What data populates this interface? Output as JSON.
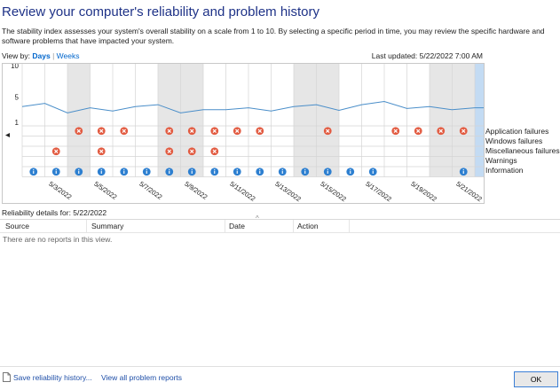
{
  "title": "Review your computer's reliability and problem history",
  "description": "The stability index assesses your system's overall stability on a scale from 1 to 10. By selecting a specific period in time, you may review the specific hardware and software problems that have impacted your system.",
  "view_by": {
    "label": "View by:",
    "days": "Days",
    "separator": "|",
    "weeks": "Weeks"
  },
  "last_updated": "Last updated: 5/22/2022 7:00 AM",
  "chart_data": {
    "type": "line",
    "y_ticks": [
      "10",
      "5",
      "1"
    ],
    "ylim": [
      1,
      10
    ],
    "x": [
      "5/2/2022",
      "5/3/2022",
      "5/4/2022",
      "5/5/2022",
      "5/6/2022",
      "5/7/2022",
      "5/8/2022",
      "5/9/2022",
      "5/10/2022",
      "5/11/2022",
      "5/12/2022",
      "5/13/2022",
      "5/14/2022",
      "5/15/2022",
      "5/16/2022",
      "5/17/2022",
      "5/18/2022",
      "5/19/2022",
      "5/20/2022",
      "5/21/2022",
      "5/22/2022"
    ],
    "x_tick_labels": [
      "5/3/2022",
      "5/5/2022",
      "5/7/2022",
      "5/9/2022",
      "5/11/2022",
      "5/13/2022",
      "5/15/2022",
      "5/17/2022",
      "5/19/2022",
      "5/21/2022"
    ],
    "stability": [
      3.5,
      4.0,
      2.5,
      3.3,
      2.8,
      3.5,
      3.8,
      2.5,
      3.0,
      3.0,
      3.3,
      2.8,
      3.5,
      3.8,
      2.9,
      3.8,
      4.3,
      3.2,
      3.5,
      3.0,
      3.3
    ],
    "shaded_days": [
      "5/4/2022",
      "5/8/2022",
      "5/9/2022",
      "5/14/2022",
      "5/15/2022",
      "5/20/2022",
      "5/21/2022"
    ],
    "selected_day": "5/22/2022",
    "rows": [
      "Application failures",
      "Windows failures",
      "Miscellaneous failures",
      "Warnings",
      "Information"
    ],
    "application_failures": [
      "5/4/2022",
      "5/5/2022",
      "5/6/2022",
      "5/8/2022",
      "5/9/2022",
      "5/10/2022",
      "5/11/2022",
      "5/12/2022",
      "5/15/2022",
      "5/18/2022",
      "5/19/2022",
      "5/20/2022",
      "5/21/2022"
    ],
    "windows_failures": [],
    "miscellaneous_failures": [
      "5/3/2022",
      "5/5/2022",
      "5/8/2022",
      "5/9/2022",
      "5/10/2022"
    ],
    "warnings": [],
    "information": [
      "5/2/2022",
      "5/3/2022",
      "5/4/2022",
      "5/5/2022",
      "5/6/2022",
      "5/7/2022",
      "5/8/2022",
      "5/9/2022",
      "5/10/2022",
      "5/11/2022",
      "5/12/2022",
      "5/13/2022",
      "5/14/2022",
      "5/15/2022",
      "5/16/2022",
      "5/17/2022",
      "5/21/2022"
    ],
    "colors": {
      "line": "#4a8ec9",
      "shade": "#e6e6e6",
      "selected": "#c3dbf3",
      "failure": "#e25b41",
      "info": "#2d7fd0"
    }
  },
  "details_label": "Reliability details for: 5/22/2022",
  "table": {
    "columns": [
      "Source",
      "Summary",
      "Date",
      "Action"
    ],
    "sort_indicator": "^",
    "empty_text": "There are no reports in this view."
  },
  "footer": {
    "save_link": "Save reliability history...",
    "view_all_link": "View all problem reports",
    "ok_label": "OK"
  }
}
